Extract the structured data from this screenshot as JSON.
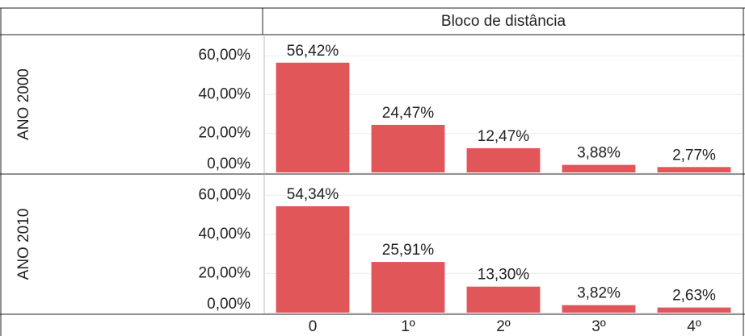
{
  "header": {
    "title": "Bloco de distância"
  },
  "chart_data": [
    {
      "type": "bar",
      "row_label": "ANO 2000",
      "values": [
        56.42,
        24.47,
        12.47,
        3.88,
        2.77
      ],
      "value_labels": [
        "56,42%",
        "24,47%",
        "12,47%",
        "3,88%",
        "2,77%"
      ],
      "color": "#e05659",
      "ylim": [
        0,
        70
      ],
      "yticks": [
        {
          "value": 0,
          "label": "0,00%"
        },
        {
          "value": 20,
          "label": "20,00%"
        },
        {
          "value": 40,
          "label": "40,00%"
        },
        {
          "value": 60,
          "label": "60,00%"
        }
      ],
      "grid": true
    },
    {
      "type": "bar",
      "row_label": "ANO 2010",
      "categories": [
        "0",
        "1º",
        "2º",
        "3º",
        "4º"
      ],
      "values": [
        54.34,
        25.91,
        13.3,
        3.82,
        2.63
      ],
      "value_labels": [
        "54,34%",
        "25,91%",
        "13,30%",
        "3,82%",
        "2,63%"
      ],
      "color": "#e05659",
      "ylim": [
        0,
        70
      ],
      "yticks": [
        {
          "value": 0,
          "label": "0,00%"
        },
        {
          "value": 20,
          "label": "20,00%"
        },
        {
          "value": 40,
          "label": "40,00%"
        },
        {
          "value": 60,
          "label": "60,00%"
        }
      ],
      "grid": true
    }
  ]
}
